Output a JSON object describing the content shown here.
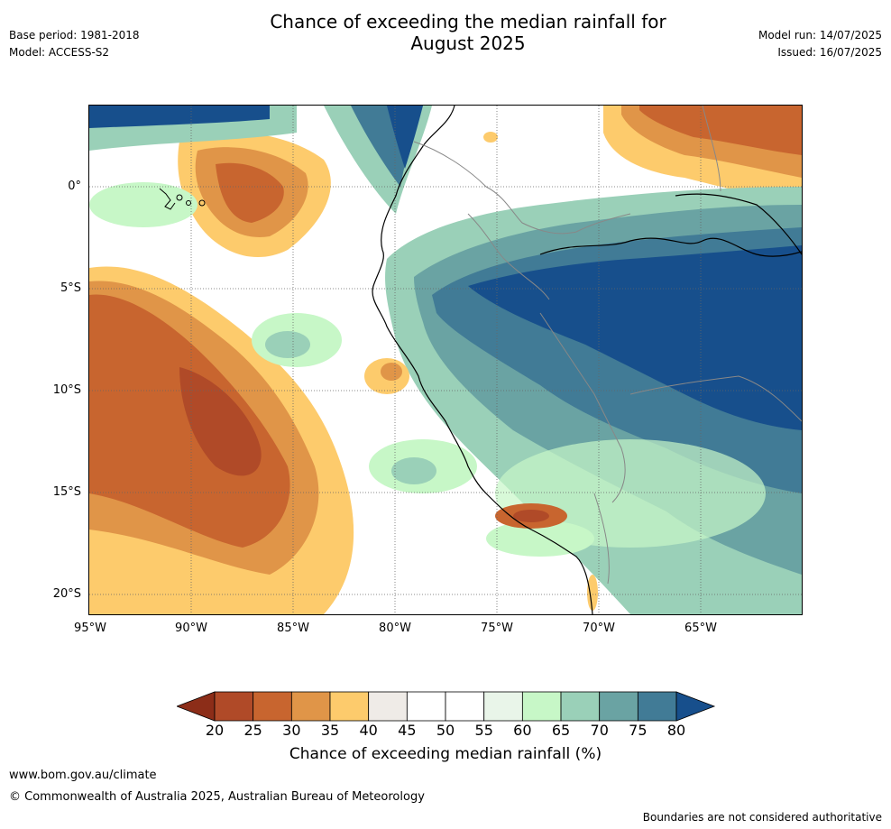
{
  "header": {
    "title_line1": "Chance of exceeding the median rainfall for",
    "title_line2": "August 2025",
    "base_period": "Base period: 1981-2018",
    "model": "Model: ACCESS-S2",
    "model_run": "Model run: 14/07/2025",
    "issued": "Issued: 16/07/2025"
  },
  "map": {
    "lat_labels": [
      "0°",
      "5°S",
      "10°S",
      "15°S",
      "20°S"
    ],
    "lon_labels": [
      "95°W",
      "90°W",
      "85°W",
      "80°W",
      "75°W",
      "70°W",
      "65°W"
    ]
  },
  "colorbar": {
    "ticks": [
      "20",
      "25",
      "30",
      "35",
      "40",
      "45",
      "50",
      "55",
      "60",
      "65",
      "70",
      "75",
      "80"
    ],
    "colors": [
      "#8c2d18",
      "#b04a28",
      "#c8652f",
      "#e09548",
      "#fdcb6c",
      "#efebe7",
      "#ffffff",
      "#ffffff",
      "#e9f5e9",
      "#c7f7c7",
      "#9ad0b8",
      "#6aa3a3",
      "#417b96",
      "#174f8c"
    ],
    "label": "Chance of exceeding median rainfall (%)"
  },
  "footer": {
    "url": "www.bom.gov.au/climate",
    "copyright": "© Commonwealth of Australia 2025, Australian Bureau of Meteorology",
    "disclaimer": "Boundaries are not considered authoritative"
  }
}
